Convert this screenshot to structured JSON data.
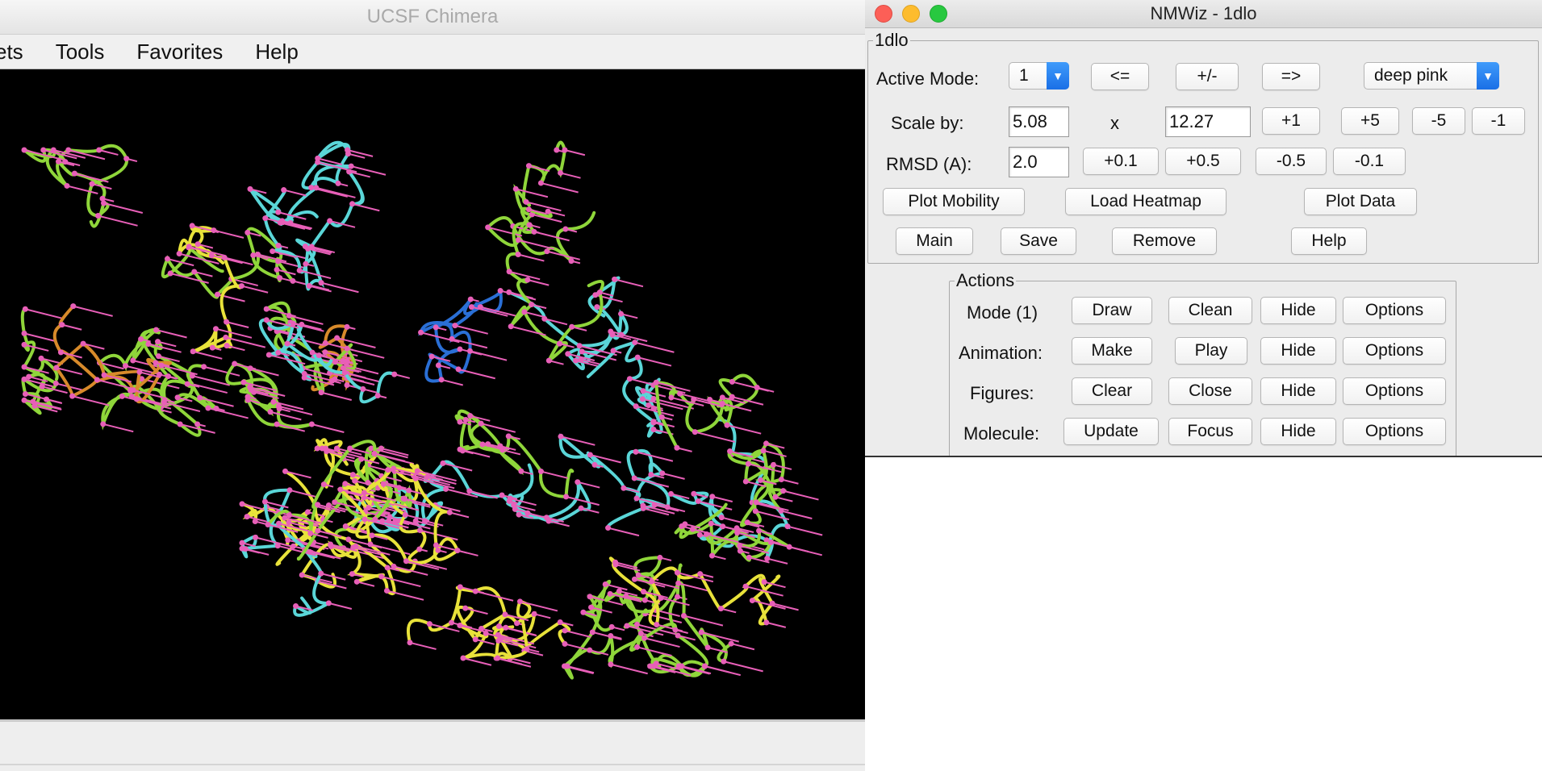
{
  "chimera": {
    "title": "UCSF Chimera",
    "menu": [
      "ets",
      "Tools",
      "Favorites",
      "Help"
    ]
  },
  "nmwiz": {
    "title": "NMWiz - 1dlo",
    "group_title": "1dlo",
    "active_mode": {
      "label": "Active Mode:",
      "value": "1",
      "prev": "<=",
      "flip": "+/-",
      "next": "=>",
      "color": "deep pink"
    },
    "scale": {
      "label": "Scale by:",
      "value": "5.08",
      "times": "x",
      "factor": "12.27",
      "buttons": [
        "+1",
        "+5",
        "-5",
        "-1"
      ]
    },
    "rmsd": {
      "label": "RMSD (A):",
      "value": "2.0",
      "buttons": [
        "+0.1",
        "+0.5",
        "-0.5",
        "-0.1"
      ]
    },
    "plot_buttons": {
      "mobility": "Plot Mobility",
      "heatmap": "Load Heatmap",
      "data": "Plot Data"
    },
    "nav_buttons": {
      "main": "Main",
      "save": "Save",
      "remove": "Remove",
      "help": "Help"
    },
    "actions": {
      "title": "Actions",
      "rows": [
        {
          "label": "Mode (1)",
          "b1": "Draw",
          "b2": "Clean",
          "b3": "Hide",
          "b4": "Options"
        },
        {
          "label": "Animation:",
          "b1": "Make",
          "b2": "Play",
          "b3": "Hide",
          "b4": "Options"
        },
        {
          "label": "Figures:",
          "b1": "Clear",
          "b2": "Close",
          "b3": "Hide",
          "b4": "Options"
        },
        {
          "label": "Molecule:",
          "b1": "Update",
          "b2": "Focus",
          "b3": "Hide",
          "b4": "Options"
        }
      ]
    }
  },
  "colors": {
    "viewer_bg": "#000000",
    "arrow": "#e85fb8",
    "ribbon_yellow": "#e8e23a",
    "ribbon_green": "#8fd63a",
    "ribbon_cyan": "#5ad6d8",
    "ribbon_blue": "#2a6fd6",
    "ribbon_orange": "#d88a2a"
  },
  "icons": [
    "close-icon",
    "minimize-icon",
    "zoom-icon",
    "chevron-down-icon"
  ]
}
